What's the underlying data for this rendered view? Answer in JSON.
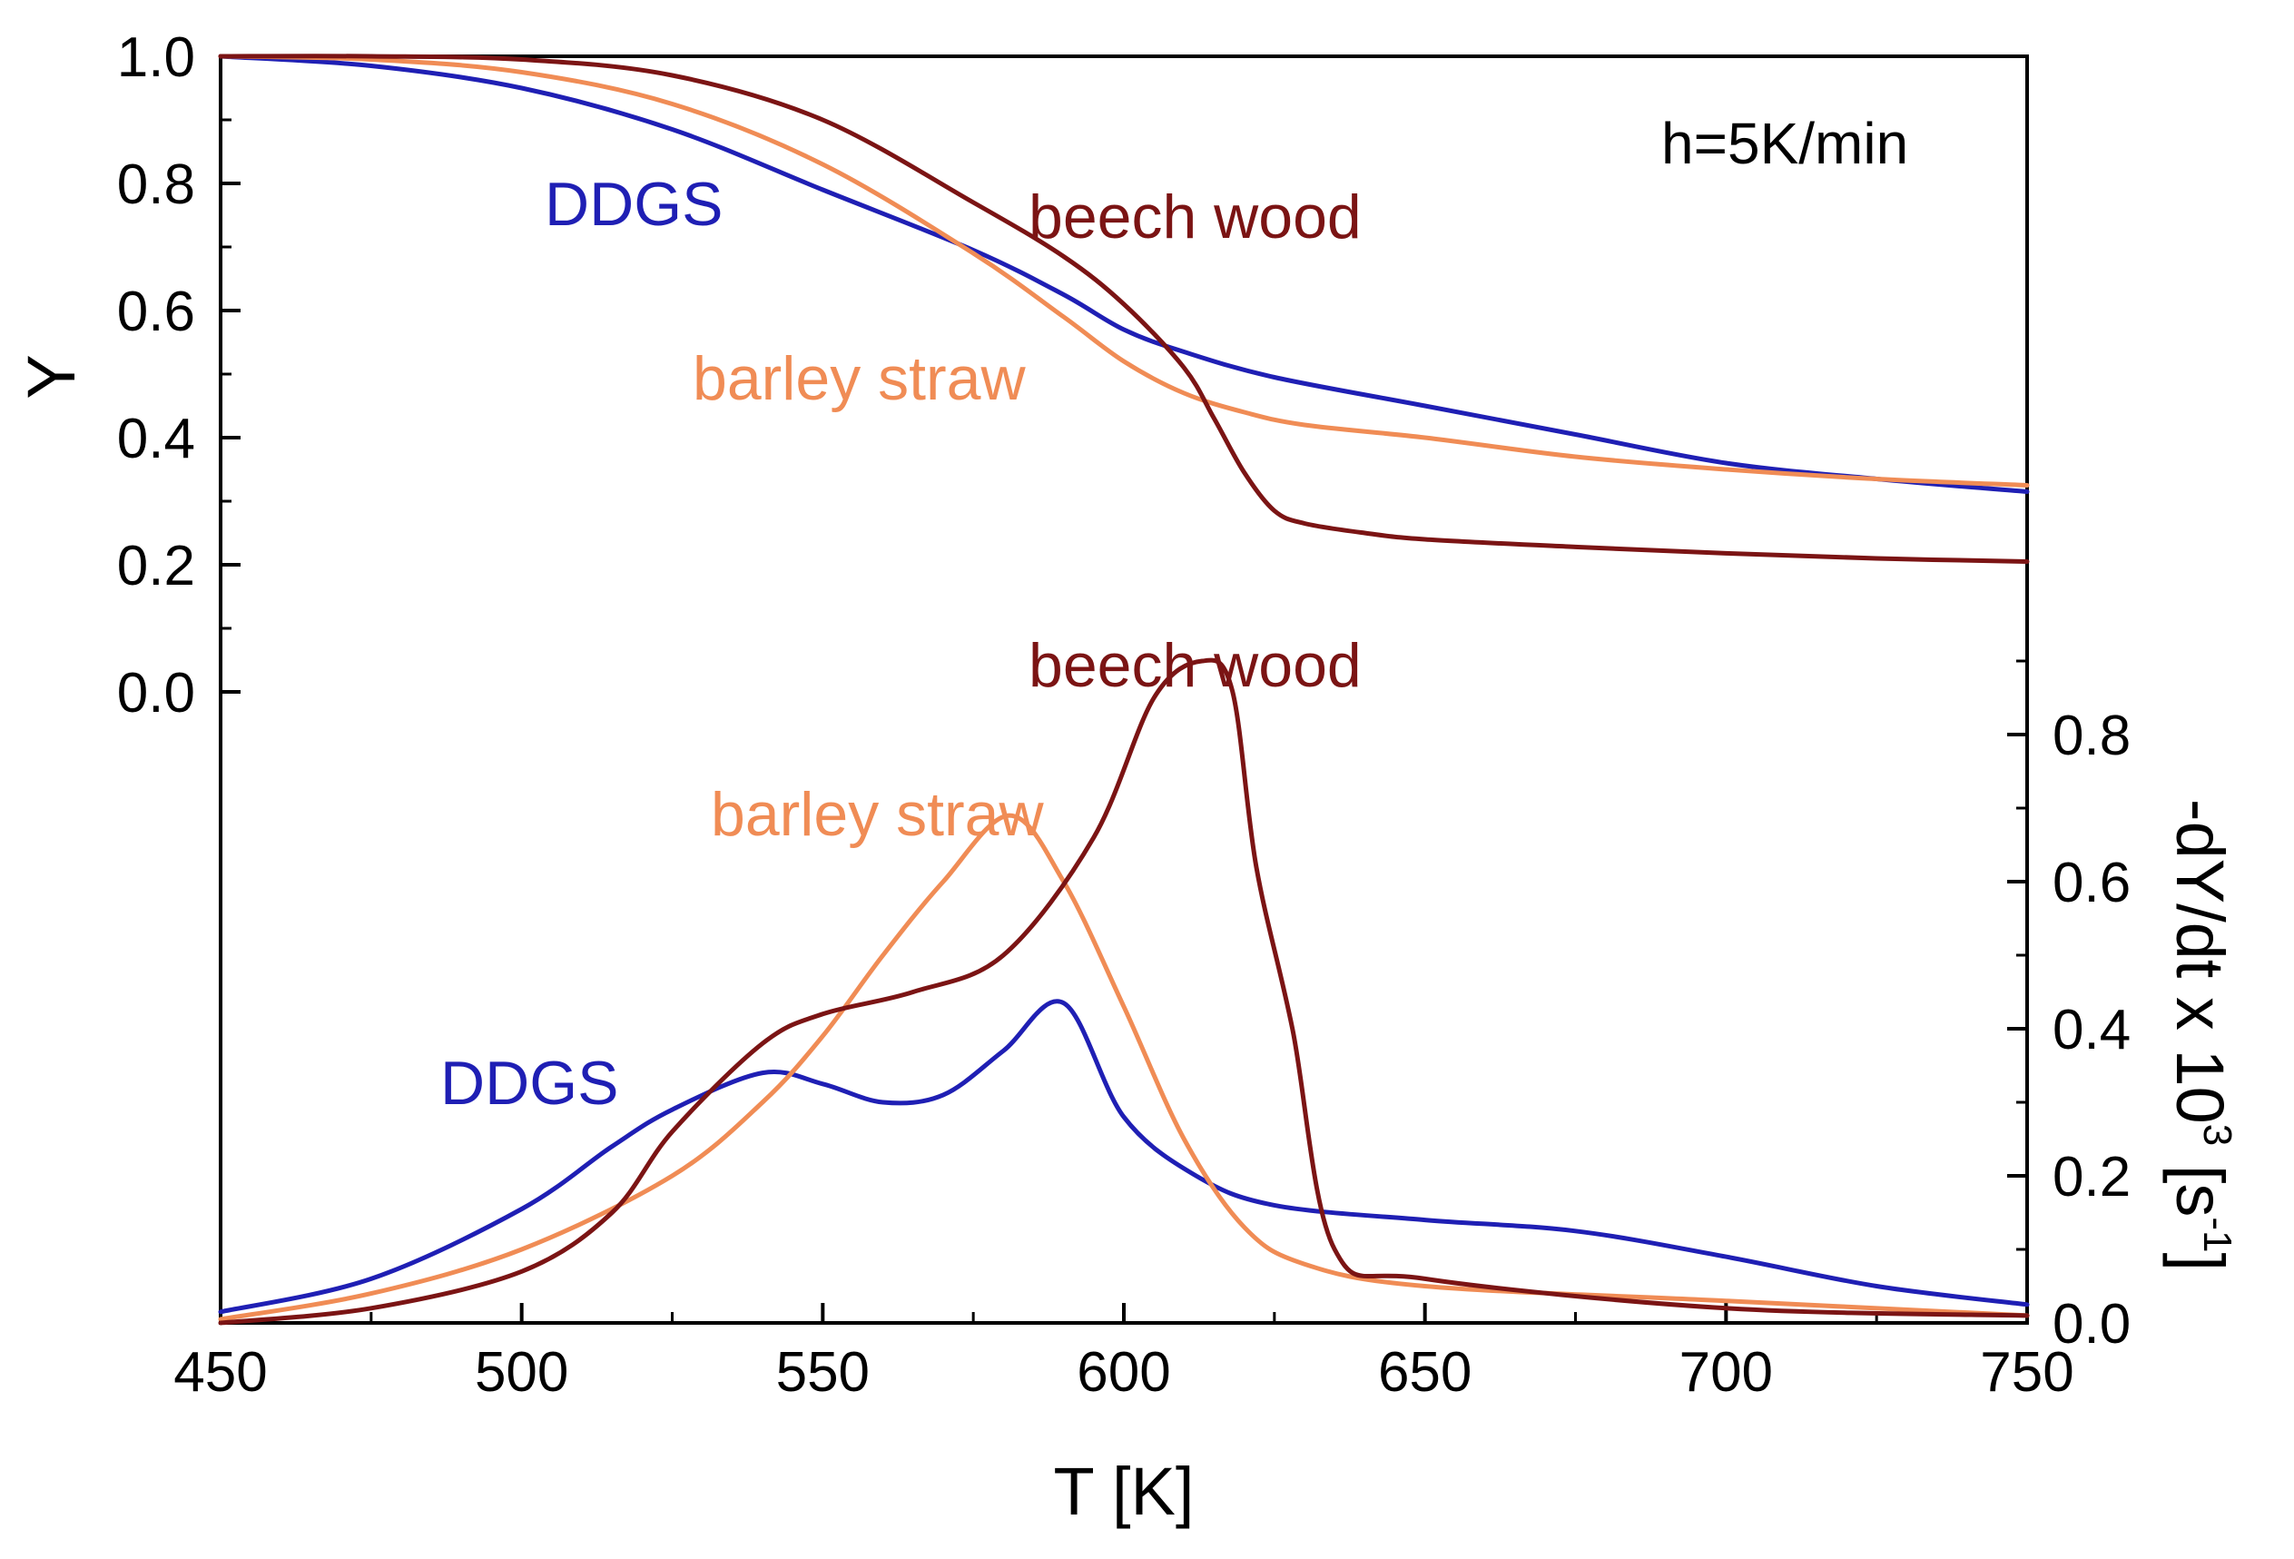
{
  "chart_data": {
    "type": "line",
    "annotation": "h=5K/min",
    "x_axis": {
      "label": "T [K]",
      "range": [
        450,
        750
      ],
      "ticks": [
        "450",
        "500",
        "550",
        "600",
        "650",
        "700",
        "750"
      ]
    },
    "left_axis": {
      "label": "Y",
      "range": [
        0.0,
        1.0
      ],
      "ticks": [
        "0.0",
        "0.2",
        "0.4",
        "0.6",
        "0.8",
        "1.0"
      ]
    },
    "right_axis": {
      "label_main": "-dY/dt x 10",
      "label_exp": "3",
      "label_units_open": " [s",
      "label_units_exp": "-1",
      "label_units_close": "]",
      "range": [
        0.0,
        0.9
      ],
      "ticks": [
        "0.0",
        "0.2",
        "0.4",
        "0.6",
        "0.8"
      ]
    },
    "colors": {
      "DDGS": "#1f1fb4",
      "barley_straw": "#f08c55",
      "beech_wood": "#7b1414"
    },
    "upper_panel": {
      "quantity": "Y",
      "labels": {
        "DDGS": "DDGS",
        "barley_straw": "barley straw",
        "beech_wood": "beech wood"
      },
      "series": [
        {
          "name": "DDGS",
          "key": "DDGS",
          "x": [
            450,
            475,
            500,
            525,
            550,
            575,
            590,
            600,
            610,
            625,
            650,
            675,
            700,
            725,
            750
          ],
          "y": [
            1.0,
            0.985,
            0.95,
            0.885,
            0.79,
            0.695,
            0.625,
            0.57,
            0.535,
            0.495,
            0.45,
            0.405,
            0.36,
            0.335,
            0.315
          ]
        },
        {
          "name": "barley straw",
          "key": "barley_straw",
          "x": [
            450,
            475,
            500,
            525,
            550,
            575,
            590,
            600,
            610,
            620,
            630,
            650,
            675,
            700,
            725,
            750
          ],
          "y": [
            1.0,
            0.995,
            0.975,
            0.925,
            0.83,
            0.69,
            0.59,
            0.52,
            0.47,
            0.44,
            0.42,
            0.4,
            0.37,
            0.35,
            0.335,
            0.325
          ]
        },
        {
          "name": "beech wood",
          "key": "beech_wood",
          "x": [
            450,
            475,
            500,
            525,
            550,
            575,
            590,
            600,
            610,
            615,
            620,
            625,
            630,
            640,
            650,
            675,
            700,
            725,
            750
          ],
          "y": [
            1.0,
            1.0,
            0.995,
            0.97,
            0.9,
            0.77,
            0.685,
            0.61,
            0.51,
            0.43,
            0.345,
            0.285,
            0.265,
            0.25,
            0.24,
            0.228,
            0.218,
            0.21,
            0.205
          ]
        }
      ]
    },
    "lower_panel": {
      "quantity": "-dY/dt x 10^3 [s^-1]",
      "labels": {
        "DDGS": "DDGS",
        "barley_straw": "barley straw",
        "beech_wood": "beech wood"
      },
      "series": [
        {
          "name": "DDGS",
          "key": "DDGS",
          "x": [
            450,
            475,
            500,
            515,
            525,
            540,
            550,
            560,
            570,
            580,
            590,
            600,
            612,
            625,
            650,
            675,
            700,
            725,
            750
          ],
          "y": [
            0.015,
            0.06,
            0.155,
            0.24,
            0.29,
            0.34,
            0.325,
            0.3,
            0.31,
            0.37,
            0.435,
            0.28,
            0.2,
            0.16,
            0.14,
            0.125,
            0.09,
            0.05,
            0.025
          ]
        },
        {
          "name": "barley straw",
          "key": "barley_straw",
          "x": [
            450,
            475,
            500,
            525,
            540,
            550,
            560,
            570,
            581,
            590,
            600,
            610,
            620,
            630,
            650,
            700,
            750
          ],
          "y": [
            0.005,
            0.04,
            0.1,
            0.2,
            0.3,
            0.39,
            0.5,
            0.6,
            0.69,
            0.6,
            0.43,
            0.25,
            0.13,
            0.08,
            0.05,
            0.03,
            0.01
          ]
        },
        {
          "name": "beech wood",
          "key": "beech_wood",
          "x": [
            450,
            475,
            500,
            515,
            525,
            540,
            550,
            565,
            580,
            595,
            605,
            613,
            618,
            622,
            628,
            635,
            650,
            700,
            750
          ],
          "y": [
            0.0,
            0.02,
            0.07,
            0.15,
            0.26,
            0.38,
            0.42,
            0.45,
            0.5,
            0.66,
            0.85,
            0.9,
            0.86,
            0.62,
            0.4,
            0.1,
            0.06,
            0.02,
            0.01
          ]
        }
      ]
    }
  }
}
